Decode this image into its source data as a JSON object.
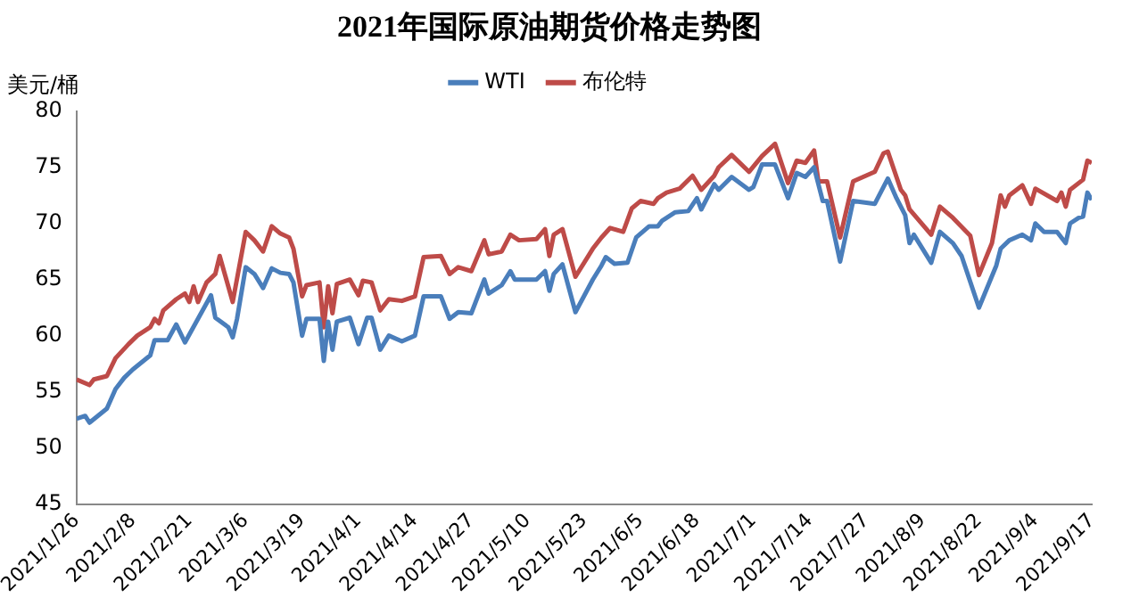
{
  "chart_data": {
    "type": "line",
    "title": "2021年国际原油期货价格走势图",
    "ylabel": "美元/桶",
    "legend": "top",
    "grid": false,
    "marker": "none",
    "line_style": "solid",
    "xlim": [
      "2021-01-26",
      "2021-09-17"
    ],
    "ylim": [
      45,
      80
    ],
    "yticks": [
      45,
      50,
      55,
      60,
      65,
      70,
      75,
      80
    ],
    "xticks": [
      {
        "value": "2021-01-26",
        "label": "2021/1/26"
      },
      {
        "value": "2021-02-08",
        "label": "2021/2/8"
      },
      {
        "value": "2021-02-21",
        "label": "2021/2/21"
      },
      {
        "value": "2021-03-06",
        "label": "2021/3/6"
      },
      {
        "value": "2021-03-19",
        "label": "2021/3/19"
      },
      {
        "value": "2021-04-01",
        "label": "2021/4/1"
      },
      {
        "value": "2021-04-14",
        "label": "2021/4/14"
      },
      {
        "value": "2021-04-27",
        "label": "2021/4/27"
      },
      {
        "value": "2021-05-10",
        "label": "2021/5/10"
      },
      {
        "value": "2021-05-23",
        "label": "2021/5/23"
      },
      {
        "value": "2021-06-05",
        "label": "2021/6/5"
      },
      {
        "value": "2021-06-18",
        "label": "2021/6/18"
      },
      {
        "value": "2021-07-01",
        "label": "2021/7/1"
      },
      {
        "value": "2021-07-14",
        "label": "2021/7/14"
      },
      {
        "value": "2021-07-27",
        "label": "2021/7/27"
      },
      {
        "value": "2021-08-09",
        "label": "2021/8/9"
      },
      {
        "value": "2021-08-22",
        "label": "2021/8/22"
      },
      {
        "value": "2021-09-04",
        "label": "2021/9/4"
      },
      {
        "value": "2021-09-17",
        "label": "2021/9/17"
      }
    ],
    "series": [
      {
        "name": "WTI",
        "color": "#4a7ebb",
        "x": [
          "2021-01-26",
          "2021-01-28",
          "2021-01-29",
          "2021-02-02",
          "2021-02-04",
          "2021-02-06",
          "2021-02-08",
          "2021-02-12",
          "2021-02-13",
          "2021-02-16",
          "2021-02-18",
          "2021-02-20",
          "2021-02-23",
          "2021-02-26",
          "2021-02-27",
          "2021-03-02",
          "2021-03-03",
          "2021-03-04",
          "2021-03-06",
          "2021-03-08",
          "2021-03-10",
          "2021-03-12",
          "2021-03-14",
          "2021-03-16",
          "2021-03-17",
          "2021-03-19",
          "2021-03-20",
          "2021-03-23",
          "2021-03-24",
          "2021-03-25",
          "2021-03-26",
          "2021-03-27",
          "2021-03-30",
          "2021-04-01",
          "2021-04-03",
          "2021-04-04",
          "2021-04-06",
          "2021-04-08",
          "2021-04-11",
          "2021-04-14",
          "2021-04-16",
          "2021-04-20",
          "2021-04-22",
          "2021-04-24",
          "2021-04-27",
          "2021-04-30",
          "2021-05-01",
          "2021-05-04",
          "2021-05-06",
          "2021-05-07",
          "2021-05-12",
          "2021-05-14",
          "2021-05-15",
          "2021-05-16",
          "2021-05-18",
          "2021-05-21",
          "2021-05-25",
          "2021-05-27",
          "2021-05-28",
          "2021-05-30",
          "2021-06-02",
          "2021-06-04",
          "2021-06-07",
          "2021-06-09",
          "2021-06-10",
          "2021-06-13",
          "2021-06-16",
          "2021-06-18",
          "2021-06-19",
          "2021-06-22",
          "2021-06-23",
          "2021-06-26",
          "2021-06-30",
          "2021-07-01",
          "2021-07-03",
          "2021-07-06",
          "2021-07-09",
          "2021-07-11",
          "2021-07-13",
          "2021-07-15",
          "2021-07-17",
          "2021-07-18",
          "2021-07-21",
          "2021-07-24",
          "2021-07-29",
          "2021-08-01",
          "2021-08-03",
          "2021-08-05",
          "2021-08-06",
          "2021-08-07",
          "2021-08-11",
          "2021-08-13",
          "2021-08-16",
          "2021-08-18",
          "2021-08-22",
          "2021-08-26",
          "2021-08-27",
          "2021-08-29",
          "2021-09-01",
          "2021-09-03",
          "2021-09-04",
          "2021-09-06",
          "2021-09-09",
          "2021-09-11",
          "2021-09-12",
          "2021-09-14",
          "2021-09-15",
          "2021-09-16",
          "2021-09-17"
        ],
        "values": [
          52.6,
          52.85,
          52.25,
          53.5,
          55.25,
          56.25,
          57,
          58.25,
          59.6,
          59.6,
          61,
          59.4,
          61.5,
          63.6,
          61.6,
          60.75,
          59.85,
          61.5,
          66.1,
          65.5,
          64.25,
          66,
          65.6,
          65.5,
          64.75,
          60,
          61.5,
          61.5,
          57.75,
          61.25,
          58.75,
          61.25,
          61.6,
          59.25,
          61.6,
          61.6,
          58.75,
          60,
          59.5,
          60,
          63.5,
          63.5,
          61.5,
          62.1,
          62,
          65,
          63.75,
          64.5,
          65.75,
          65,
          65,
          65.75,
          64,
          65.5,
          66.35,
          62.1,
          65,
          66.25,
          67,
          66.4,
          66.5,
          68.75,
          69.75,
          69.75,
          70.25,
          71,
          71.1,
          72.25,
          71.25,
          73.5,
          73,
          74.15,
          73,
          73.25,
          75.25,
          75.25,
          72.25,
          74.5,
          74.15,
          75,
          72,
          72,
          66.6,
          72,
          71.75,
          74,
          72.25,
          70.75,
          68.25,
          69,
          66.5,
          69.25,
          68.25,
          67.1,
          62.5,
          66.25,
          67.75,
          68.5,
          69,
          68.5,
          70,
          69.25,
          69.25,
          68.25,
          70,
          70.5,
          70.6,
          72.75,
          72.1
        ]
      },
      {
        "name": "布伦特",
        "color": "#be4b48",
        "x": [
          "2021-01-26",
          "2021-01-29",
          "2021-01-30",
          "2021-02-02",
          "2021-02-04",
          "2021-02-07",
          "2021-02-09",
          "2021-02-12",
          "2021-02-13",
          "2021-02-14",
          "2021-02-15",
          "2021-02-18",
          "2021-02-20",
          "2021-02-21",
          "2021-02-22",
          "2021-02-23",
          "2021-02-25",
          "2021-02-27",
          "2021-02-28",
          "2021-03-03",
          "2021-03-06",
          "2021-03-08",
          "2021-03-10",
          "2021-03-12",
          "2021-03-14",
          "2021-03-16",
          "2021-03-17",
          "2021-03-19",
          "2021-03-20",
          "2021-03-23",
          "2021-03-24",
          "2021-03-25",
          "2021-03-26",
          "2021-03-27",
          "2021-03-30",
          "2021-04-01",
          "2021-04-02",
          "2021-04-04",
          "2021-04-06",
          "2021-04-08",
          "2021-04-11",
          "2021-04-14",
          "2021-04-16",
          "2021-04-20",
          "2021-04-22",
          "2021-04-24",
          "2021-04-27",
          "2021-04-30",
          "2021-05-01",
          "2021-05-04",
          "2021-05-06",
          "2021-05-08",
          "2021-05-12",
          "2021-05-14",
          "2021-05-15",
          "2021-05-16",
          "2021-05-18",
          "2021-05-21",
          "2021-05-25",
          "2021-05-27",
          "2021-05-29",
          "2021-06-01",
          "2021-06-03",
          "2021-06-05",
          "2021-06-08",
          "2021-06-09",
          "2021-06-11",
          "2021-06-14",
          "2021-06-17",
          "2021-06-19",
          "2021-06-22",
          "2021-06-23",
          "2021-06-26",
          "2021-06-30",
          "2021-07-03",
          "2021-07-06",
          "2021-07-09",
          "2021-07-11",
          "2021-07-13",
          "2021-07-15",
          "2021-07-16",
          "2021-07-18",
          "2021-07-21",
          "2021-07-24",
          "2021-07-29",
          "2021-07-31",
          "2021-08-01",
          "2021-08-04",
          "2021-08-05",
          "2021-08-06",
          "2021-08-11",
          "2021-08-13",
          "2021-08-16",
          "2021-08-20",
          "2021-08-22",
          "2021-08-25",
          "2021-08-27",
          "2021-08-28",
          "2021-08-29",
          "2021-09-01",
          "2021-09-03",
          "2021-09-04",
          "2021-09-09",
          "2021-09-10",
          "2021-09-11",
          "2021-09-12",
          "2021-09-15",
          "2021-09-16",
          "2021-09-17"
        ],
        "values": [
          56.1,
          55.6,
          56.1,
          56.4,
          58,
          59.25,
          60,
          60.75,
          61.5,
          61.1,
          62.25,
          63.25,
          63.75,
          63,
          64.4,
          63,
          64.75,
          65.5,
          67.1,
          63,
          69.25,
          68.5,
          67.5,
          69.75,
          69.1,
          68.75,
          67.75,
          63.5,
          64.5,
          64.75,
          60.75,
          64.4,
          62,
          64.6,
          65,
          63.6,
          64.9,
          64.75,
          62.25,
          63.25,
          63.1,
          63.5,
          67,
          67.1,
          65.5,
          66.1,
          65.75,
          68.5,
          67.25,
          67.5,
          69,
          68.5,
          68.6,
          69.5,
          67.1,
          69,
          69.5,
          65.25,
          67.75,
          68.75,
          69.6,
          69.25,
          71.35,
          72,
          71.75,
          72.25,
          72.75,
          73.1,
          74.25,
          73,
          74.25,
          75,
          76.1,
          74.6,
          76,
          77.1,
          73.6,
          75.6,
          75.4,
          76.5,
          73.75,
          73.75,
          68.75,
          73.75,
          74.6,
          76.25,
          76.4,
          73,
          72.5,
          71.25,
          69,
          71.5,
          70.5,
          68.9,
          65.4,
          68.25,
          72.5,
          71.5,
          72.5,
          73.4,
          71.75,
          73.1,
          72,
          72.75,
          71.5,
          73,
          73.9,
          75.6,
          75.4
        ]
      }
    ]
  }
}
